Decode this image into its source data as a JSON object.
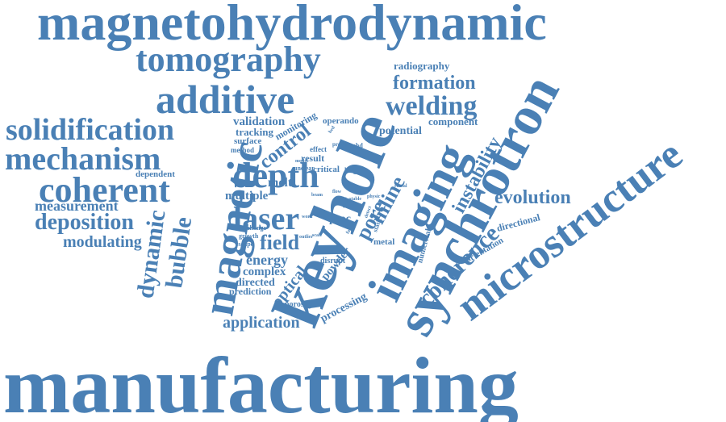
{
  "color": "#4a80b5",
  "words": [
    "manufacturing",
    "magnetohydrodynamic",
    "keyhole",
    "synchrotron",
    "microstructure",
    "imaging",
    "tomography",
    "additive",
    "magnetic",
    "solidification",
    "mechanism",
    "coherent",
    "depth",
    "laser",
    "welding",
    "formation",
    "coherence",
    "evolution",
    "instability",
    "inline",
    "pore",
    "control",
    "bubble",
    "dynamic",
    "deposition",
    "measurement",
    "modulating",
    "field",
    "melt",
    "multiple",
    "energy",
    "complex",
    "directed",
    "prediction",
    "application",
    "optical",
    "porosity",
    "processing",
    "powder",
    "disrupt",
    "metal",
    "numerical",
    "orientation",
    "directional",
    "radiography",
    "potential",
    "component",
    "operando",
    "validation",
    "tracking",
    "monitoring",
    "surface",
    "method",
    "result",
    "effect",
    "profile",
    "temhd",
    "critical",
    "larger",
    "unclear",
    "model",
    "dependent",
    "change",
    "growth",
    "escape",
    "proc",
    "beam",
    "flow",
    "lpbf",
    "stable",
    "physic",
    "reveal",
    "static",
    "detect",
    "fusion",
    "scale",
    "work",
    "outlier",
    "event",
    "bed"
  ]
}
